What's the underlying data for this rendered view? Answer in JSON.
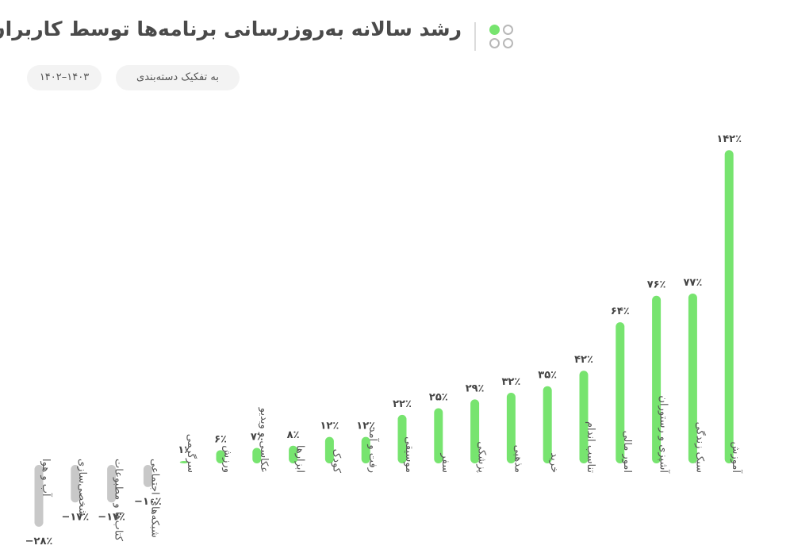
{
  "header": {
    "title": "رشد سالانه به‌روزرسانی برنامه‌ها توسط کاربران",
    "breakdown": "به تفکیک دسته‌بندی",
    "period": "۱۴۰۲–۱۴۰۳"
  },
  "colors": {
    "positive": "#77e46f",
    "negative": "#c8c8c8",
    "logo_green": "#77e46f",
    "logo_gray": "#b8b8b8"
  },
  "chart_data": {
    "type": "bar",
    "unit": "%",
    "categories": [
      "آب و هوا",
      "شخصی‌سازی",
      "کتاب‌ها و مطبوعات",
      "شبکه‌های اجتماعی",
      "سرگرمی",
      "ورزش",
      "عکاسی و ویدیو",
      "ابزارها",
      "کودک",
      "رفت و آمد",
      "موسیقی",
      "سفر",
      "پزشکی",
      "مذهبی",
      "خرید",
      "تناسب اندام",
      "امور مالی",
      "آشپزی و رستوران",
      "سبک زندگی",
      "آموزش"
    ],
    "values": [
      -28,
      -17,
      -17,
      -10,
      1,
      6,
      7,
      8,
      12,
      12,
      22,
      25,
      29,
      32,
      35,
      42,
      64,
      76,
      77,
      142
    ],
    "value_labels": [
      "−۲۸٪",
      "−۱۷٪",
      "−۱۷٪",
      "−۱۰٪",
      "۱٪",
      "۶٪",
      "۷٪",
      "۸٪",
      "۱۲٪",
      "۱۲٪",
      "۲۲٪",
      "۲۵٪",
      "۲۹٪",
      "۳۲٪",
      "۳۵٪",
      "۴۲٪",
      "۶۴٪",
      "۷۶٪",
      "۷۷٪",
      "۱۴۲٪"
    ]
  }
}
